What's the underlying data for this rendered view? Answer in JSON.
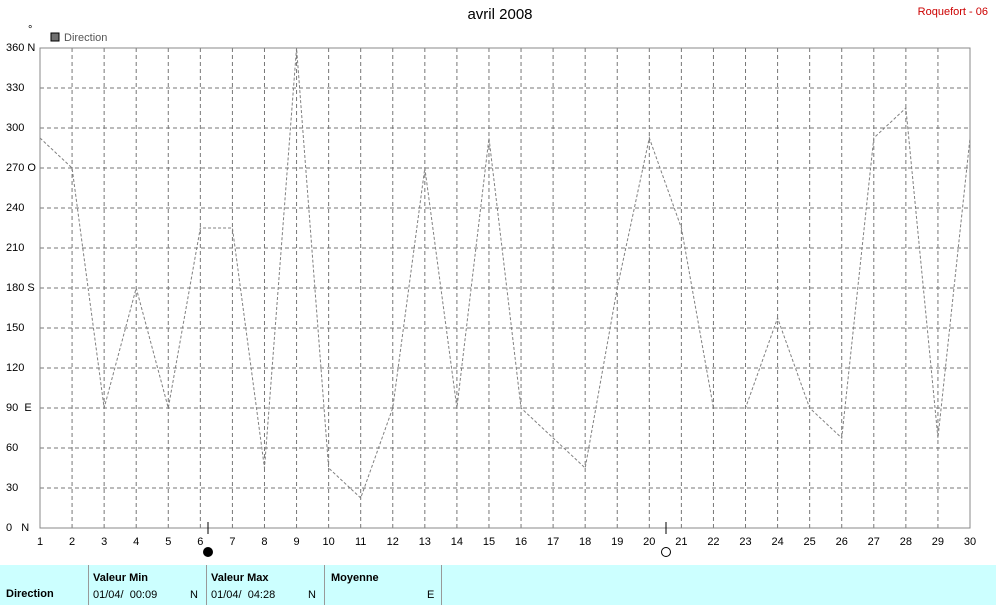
{
  "chart_data": {
    "type": "line",
    "title": "avril 2008",
    "station": "Roquefort - 06",
    "y_unit": "°",
    "x": [
      1,
      2,
      3,
      4,
      5,
      6,
      7,
      8,
      9,
      10,
      11,
      12,
      13,
      14,
      15,
      16,
      17,
      18,
      19,
      20,
      21,
      22,
      23,
      24,
      25,
      26,
      27,
      28,
      29,
      30
    ],
    "xlim": [
      1,
      30
    ],
    "xticks": [
      1,
      2,
      3,
      4,
      5,
      6,
      7,
      8,
      9,
      10,
      11,
      12,
      13,
      14,
      15,
      16,
      17,
      18,
      19,
      20,
      21,
      22,
      23,
      24,
      25,
      26,
      27,
      28,
      29,
      30
    ],
    "ylim": [
      0,
      360
    ],
    "yticks": [
      {
        "value": 0,
        "label": "0   N"
      },
      30,
      60,
      {
        "value": 90,
        "label": "90  E"
      },
      120,
      150,
      {
        "value": 180,
        "label": "180 S"
      },
      210,
      240,
      {
        "value": 270,
        "label": "270 O"
      },
      300,
      330,
      {
        "value": 360,
        "label": "360 N"
      }
    ],
    "grid": true,
    "series": [
      {
        "name": "Direction",
        "color": "#808080",
        "values": [
          292.5,
          270,
          90,
          180,
          90,
          225,
          225,
          45,
          360,
          45,
          22.5,
          90,
          270,
          90,
          292.5,
          90,
          67.5,
          45,
          180,
          292.5,
          225,
          90,
          90,
          157.5,
          90,
          67.5,
          292.5,
          315,
          67.5,
          292.5
        ]
      }
    ]
  },
  "stats": {
    "label": "Direction",
    "min": {
      "title": "Valeur Min",
      "date": "01/04/  00:09",
      "value": "N"
    },
    "max": {
      "title": "Valeur Max",
      "date": "01/04/  04:28",
      "value": "N"
    },
    "mean": {
      "title": "Moyenne",
      "value": "E"
    }
  }
}
